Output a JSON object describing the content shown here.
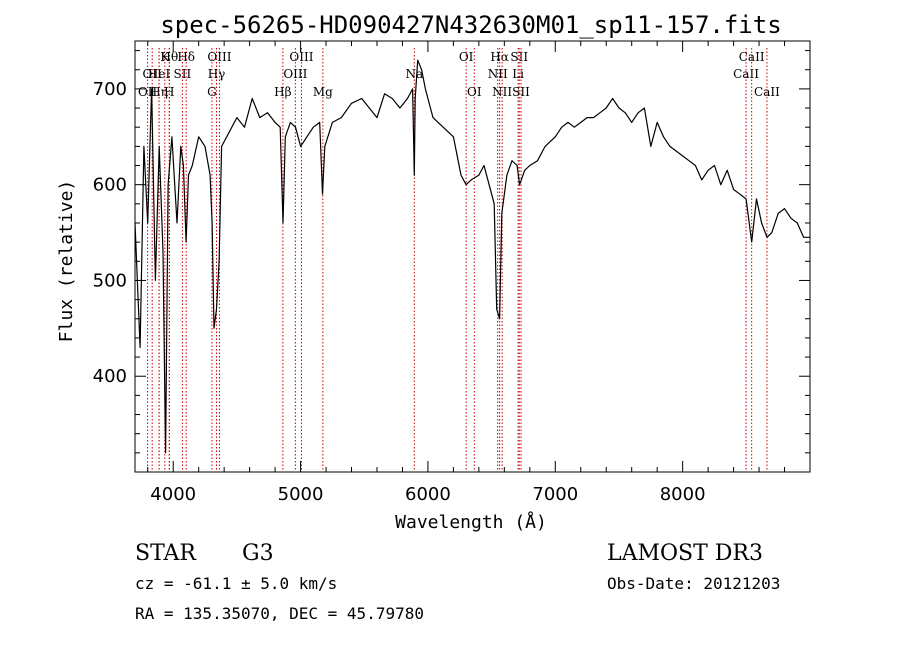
{
  "chart_data": {
    "type": "line",
    "title": "spec-56265-HD090427N432630M01_sp11-157.fits",
    "xlabel": "Wavelength (Å)",
    "ylabel": "Flux (relative)",
    "xlim": [
      3700,
      9000
    ],
    "ylim": [
      300,
      750
    ],
    "xticks": [
      4000,
      5000,
      6000,
      7000,
      8000
    ],
    "yticks": [
      400,
      500,
      600,
      700
    ],
    "series": [
      {
        "name": "spectrum",
        "x": [
          3700,
          3740,
          3770,
          3800,
          3830,
          3860,
          3890,
          3920,
          3940,
          3960,
          3990,
          4030,
          4060,
          4080,
          4101,
          4120,
          4150,
          4200,
          4250,
          4290,
          4305,
          4320,
          4340,
          4360,
          4380,
          4420,
          4460,
          4500,
          4560,
          4620,
          4680,
          4740,
          4800,
          4840,
          4862,
          4880,
          4920,
          4960,
          5000,
          5050,
          5100,
          5150,
          5172,
          5190,
          5250,
          5320,
          5400,
          5480,
          5540,
          5600,
          5660,
          5720,
          5780,
          5840,
          5880,
          5893,
          5900,
          5920,
          5950,
          5980,
          6000,
          6040,
          6080,
          6120,
          6200,
          6260,
          6300,
          6340,
          6400,
          6440,
          6480,
          6520,
          6540,
          6563,
          6580,
          6620,
          6660,
          6700,
          6720,
          6760,
          6800,
          6860,
          6920,
          6960,
          7000,
          7050,
          7100,
          7150,
          7200,
          7250,
          7300,
          7350,
          7400,
          7450,
          7500,
          7550,
          7600,
          7650,
          7700,
          7750,
          7800,
          7850,
          7900,
          7950,
          8000,
          8050,
          8100,
          8150,
          8200,
          8250,
          8300,
          8350,
          8400,
          8450,
          8498,
          8542,
          8580,
          8620,
          8662,
          8700,
          8750,
          8800,
          8850,
          8900,
          8950,
          9000
        ],
        "y": [
          560,
          430,
          640,
          560,
          700,
          500,
          640,
          530,
          320,
          600,
          650,
          560,
          640,
          620,
          540,
          610,
          620,
          650,
          640,
          610,
          560,
          450,
          470,
          520,
          640,
          650,
          660,
          670,
          660,
          690,
          670,
          675,
          665,
          660,
          560,
          650,
          665,
          660,
          640,
          650,
          660,
          665,
          590,
          640,
          665,
          670,
          685,
          690,
          680,
          670,
          695,
          690,
          680,
          690,
          700,
          610,
          690,
          730,
          720,
          700,
          690,
          670,
          665,
          660,
          650,
          610,
          600,
          605,
          610,
          620,
          600,
          580,
          470,
          460,
          570,
          610,
          625,
          620,
          600,
          615,
          620,
          625,
          640,
          645,
          650,
          660,
          665,
          660,
          665,
          670,
          670,
          675,
          680,
          690,
          680,
          675,
          665,
          675,
          680,
          640,
          665,
          650,
          640,
          635,
          630,
          625,
          620,
          605,
          615,
          620,
          600,
          615,
          595,
          590,
          585,
          540,
          585,
          560,
          545,
          550,
          570,
          575,
          565,
          560,
          545,
          545
        ]
      }
    ],
    "lines": [
      {
        "wavelength": 3799,
        "label": "OII",
        "row": 2
      },
      {
        "wavelength": 3835,
        "label": "OII",
        "row": 1
      },
      {
        "wavelength": 3889,
        "label": "Hη",
        "row": 2
      },
      {
        "wavelength": 3889,
        "label": "HeI",
        "row": 1
      },
      {
        "wavelength": 3934,
        "label": "K",
        "row": 0
      },
      {
        "wavelength": 3969,
        "label": "H",
        "row": 2
      },
      {
        "wavelength": 3970,
        "label": "Hθ",
        "row": 0
      },
      {
        "wavelength": 4072,
        "label": "SII",
        "row": 1
      },
      {
        "wavelength": 4102,
        "label": "Hδ",
        "row": 0
      },
      {
        "wavelength": 4304,
        "label": "G",
        "row": 2
      },
      {
        "wavelength": 4340,
        "label": "Hγ",
        "row": 1
      },
      {
        "wavelength": 4363,
        "label": "OIII",
        "row": 0
      },
      {
        "wavelength": 4861,
        "label": "Hβ",
        "row": 2
      },
      {
        "wavelength": 4959,
        "label": "OIII",
        "row": 1
      },
      {
        "wavelength": 5007,
        "label": "OIII",
        "row": 0
      },
      {
        "wavelength": 5175,
        "label": "Mg",
        "row": 2
      },
      {
        "wavelength": 5893,
        "label": "Na",
        "row": 1
      },
      {
        "wavelength": 6300,
        "label": "OI",
        "row": 0
      },
      {
        "wavelength": 6364,
        "label": "OI",
        "row": 2
      },
      {
        "wavelength": 6548,
        "label": "NII",
        "row": 1
      },
      {
        "wavelength": 6563,
        "label": "Hα",
        "row": 0
      },
      {
        "wavelength": 6583,
        "label": "NII",
        "row": 2
      },
      {
        "wavelength": 6708,
        "label": "Li",
        "row": 1
      },
      {
        "wavelength": 6717,
        "label": "SII",
        "row": 0
      },
      {
        "wavelength": 6731,
        "label": "SII",
        "row": 2
      },
      {
        "wavelength": 8498,
        "label": "CaII",
        "row": 1
      },
      {
        "wavelength": 8542,
        "label": "CaII",
        "row": 0
      },
      {
        "wavelength": 8662,
        "label": "CaII",
        "row": 2
      }
    ],
    "line_color": "#000000",
    "marker_color": "#cc0000"
  },
  "info": {
    "class": "STAR",
    "subclass": "G3",
    "survey": "LAMOST DR3",
    "redshift": "cz = -61.1 ± 5.0 km/s",
    "obs_date": "Obs-Date: 20121203",
    "coords": "RA = 135.35070, DEC =  45.79780"
  }
}
